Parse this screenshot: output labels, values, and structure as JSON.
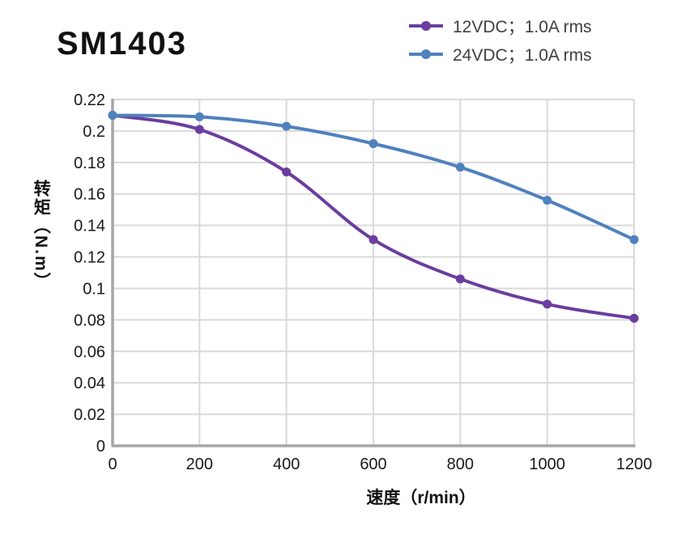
{
  "chart_data": {
    "type": "line",
    "title": "SM1403",
    "x": [
      0,
      200,
      400,
      600,
      800,
      1000,
      1200
    ],
    "series": [
      {
        "name": "12VDC；1.0A rms",
        "color": "#6A3D9E",
        "values": [
          0.21,
          0.201,
          0.174,
          0.131,
          0.106,
          0.09,
          0.081
        ]
      },
      {
        "name": "24VDC；1.0A rms",
        "color": "#4F81BD",
        "values": [
          0.21,
          0.209,
          0.203,
          0.192,
          0.177,
          0.156,
          0.131
        ]
      }
    ],
    "xlabel": "速度（r/min）",
    "ylabel": "转矩（N.m）",
    "xlim": [
      0,
      1200
    ],
    "ylim": [
      0,
      0.22
    ],
    "xticks": {
      "values": [
        0,
        200,
        400,
        600,
        800,
        1000,
        1200
      ],
      "labels": [
        "0",
        "200",
        "400",
        "600",
        "800",
        "1000",
        "1200"
      ]
    },
    "yticks": {
      "values": [
        0,
        0.02,
        0.04,
        0.06,
        0.08,
        0.1,
        0.12,
        0.14,
        0.16,
        0.18,
        0.2,
        0.22
      ],
      "labels": [
        "0",
        "0.02",
        "0.04",
        "0.06",
        "0.08",
        "0.1",
        "0.12",
        "0.14",
        "0.16",
        "0.18",
        "0.2",
        "0.22"
      ]
    },
    "grid": true,
    "legend_position": "top-right",
    "colors": {
      "grid": "#D9D9D9",
      "axis": "#A6A6A6",
      "tick_text": "#1A1A1A",
      "legend_text": "#3F3F3F",
      "title_text": "#111111"
    }
  }
}
